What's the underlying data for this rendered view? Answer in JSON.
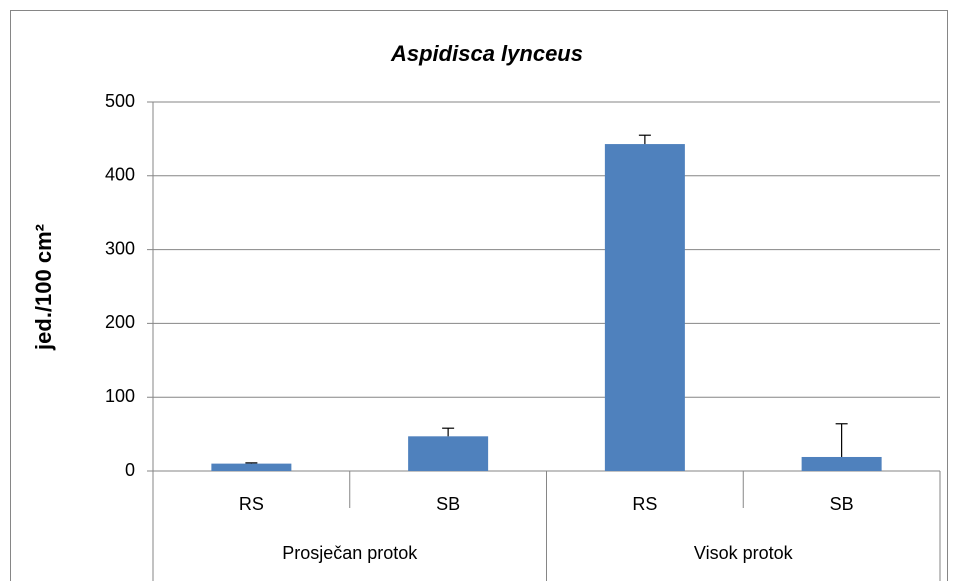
{
  "chart_data": {
    "type": "bar",
    "title": "Aspidisca lynceus",
    "y_label": "jed./100 cm²",
    "categories": [
      "RS",
      "SB",
      "RS",
      "SB"
    ],
    "groups": [
      "Prosječan protok",
      "Visok protok"
    ],
    "series": [
      {
        "color": "#4f81bd",
        "values": [
          10,
          47,
          443,
          19
        ],
        "errors": [
          1,
          11,
          12,
          45
        ]
      }
    ],
    "ylim": [
      0,
      500
    ],
    "yticks": [
      0,
      100,
      200,
      300,
      400,
      500
    ],
    "grid": true
  }
}
